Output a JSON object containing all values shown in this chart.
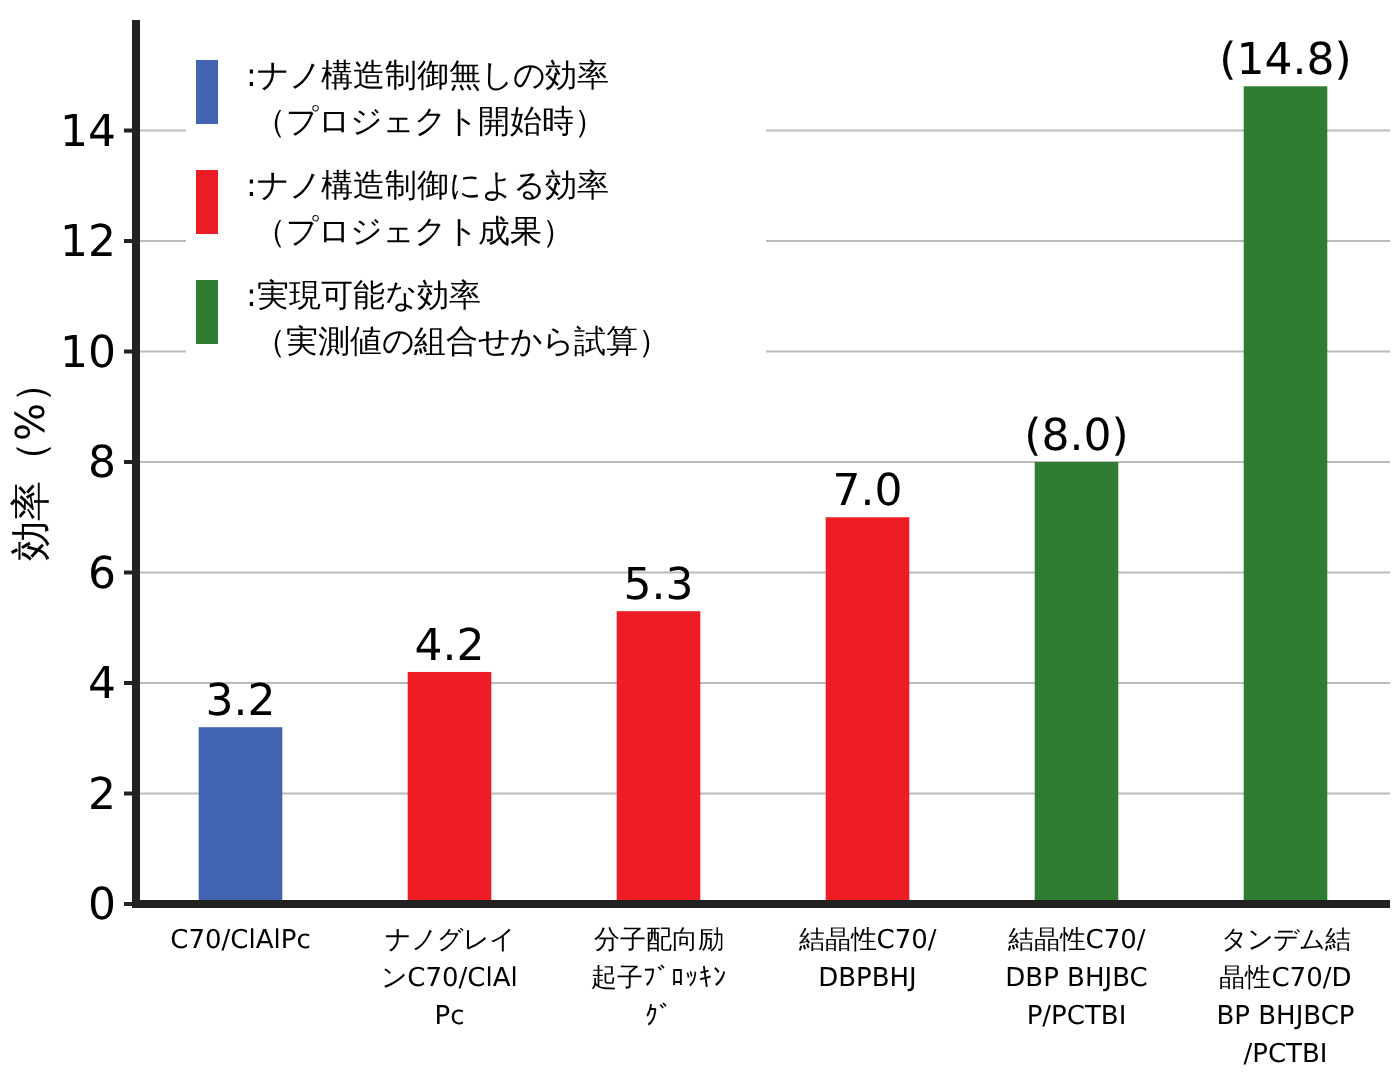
{
  "chart_data": {
    "type": "bar",
    "ylabel": "効率（%）",
    "categories": [
      "C70/ClAlPc",
      "ナノグレインC70/ClAlPc",
      "分子配向励起子ﾌﾞﾛｯｷﾝｸﾞ",
      "結晶性C70/DBPBHJ",
      "結晶性C70/DBP BHJBCP/PCTBI",
      "タンデム結晶性C70/DBP BHJBCP/PCTBI"
    ],
    "series": [
      {
        "name": ":ナノ構造制御無しの効率（プロジェクト開始時）",
        "color": "#4263b0",
        "values": [
          3.2,
          null,
          null,
          null,
          null,
          null
        ],
        "value_labels": [
          "3.2",
          null,
          null,
          null,
          null,
          null
        ]
      },
      {
        "name": ":ナノ構造制御による効率（プロジェクト成果）",
        "color": "#ee1c25",
        "values": [
          null,
          4.2,
          5.3,
          7.0,
          null,
          null
        ],
        "value_labels": [
          null,
          "4.2",
          "5.3",
          "7.0",
          null,
          null
        ]
      },
      {
        "name": ":実現可能な効率（実測値の組合せから試算）",
        "color": "#2e7d32",
        "values": [
          null,
          null,
          null,
          null,
          8.0,
          14.8
        ],
        "value_labels": [
          null,
          null,
          null,
          null,
          "(8.0)",
          "(14.8)"
        ]
      }
    ],
    "stacked": true,
    "ylim": [
      0,
      16
    ],
    "yticks": [
      0,
      2,
      4,
      6,
      8,
      10,
      12,
      14
    ],
    "grid": "y",
    "legend": "top left"
  }
}
